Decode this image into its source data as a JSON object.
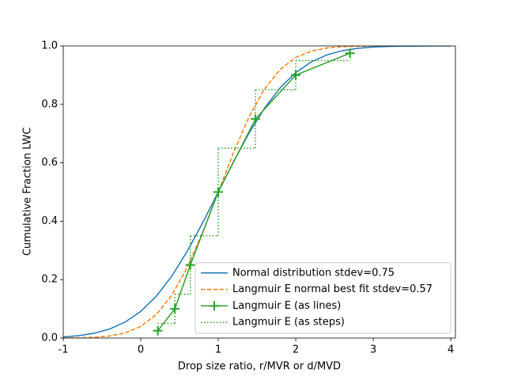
{
  "chart_data": {
    "type": "line",
    "xlabel": "Drop size ratio, r/MVR or d/MVD",
    "ylabel": "Cumulative Fraction LWC",
    "xlim": [
      -1,
      4.06
    ],
    "ylim": [
      0,
      1
    ],
    "xticks": [
      -1,
      0,
      1,
      2,
      3,
      4
    ],
    "yticks": [
      {
        "value": 0,
        "label": "0.0"
      },
      {
        "value": 0.2,
        "label": "0.2"
      },
      {
        "value": 0.4,
        "label": "0.4"
      },
      {
        "value": 0.6,
        "label": "0.6"
      },
      {
        "value": 0.8,
        "label": "0.8"
      },
      {
        "value": 1,
        "label": "1.0"
      }
    ],
    "legend": "lower right",
    "series": [
      {
        "name": "Normal distribution stdev=0.75",
        "color": "#1f77b4",
        "linestyle": "solid",
        "x": [
          -1,
          -0.8,
          -0.6,
          -0.4,
          -0.2,
          0,
          0.2,
          0.4,
          0.6,
          0.8,
          1,
          1.2,
          1.4,
          1.6,
          1.8,
          2,
          2.2,
          2.4,
          2.6,
          2.8,
          3,
          3.2,
          3.4,
          3.6,
          3.8,
          4
        ],
        "values": [
          0.0038,
          0.0082,
          0.0165,
          0.031,
          0.0548,
          0.0912,
          0.143,
          0.2119,
          0.297,
          0.3949,
          0.5,
          0.6051,
          0.703,
          0.7881,
          0.857,
          0.9088,
          0.9452,
          0.969,
          0.9835,
          0.9918,
          0.9962,
          0.9983,
          0.9993,
          0.9997,
          0.9999,
          1
        ]
      },
      {
        "name": "Langmuir E normal best fit stdev=0.57",
        "color": "#ff7f0e",
        "linestyle": "dashed",
        "x": [
          -1,
          -0.8,
          -0.6,
          -0.4,
          -0.2,
          0,
          0.2,
          0.4,
          0.6,
          0.8,
          1,
          1.2,
          1.4,
          1.6,
          1.8,
          2,
          2.2,
          2.4,
          2.6,
          2.8,
          3
        ],
        "values": [
          0.0002,
          0.0008,
          0.0025,
          0.007,
          0.0176,
          0.0397,
          0.0802,
          0.1462,
          0.2414,
          0.3628,
          0.5,
          0.6372,
          0.7586,
          0.8538,
          0.9198,
          0.9603,
          0.9824,
          0.993,
          0.9975,
          0.9992,
          0.9998
        ]
      },
      {
        "name": "Langmuir E (as lines)",
        "color": "#2ca02c",
        "linestyle": "solid",
        "marker": "+",
        "x": [
          0.22,
          0.44,
          0.64,
          1,
          1.48,
          2,
          2.7
        ],
        "values": [
          0.025,
          0.1,
          0.25,
          0.5,
          0.75,
          0.9,
          0.975
        ]
      },
      {
        "name": "Langmuir E (as steps)",
        "color": "#2ca02c",
        "linestyle": "dotted",
        "drawstyle": "steps-post",
        "x": [
          0.22,
          0.44,
          0.64,
          1,
          1.48,
          2,
          2.7
        ],
        "values": [
          0.05,
          0.15,
          0.35,
          0.65,
          0.85,
          0.95,
          0.95
        ]
      }
    ]
  }
}
